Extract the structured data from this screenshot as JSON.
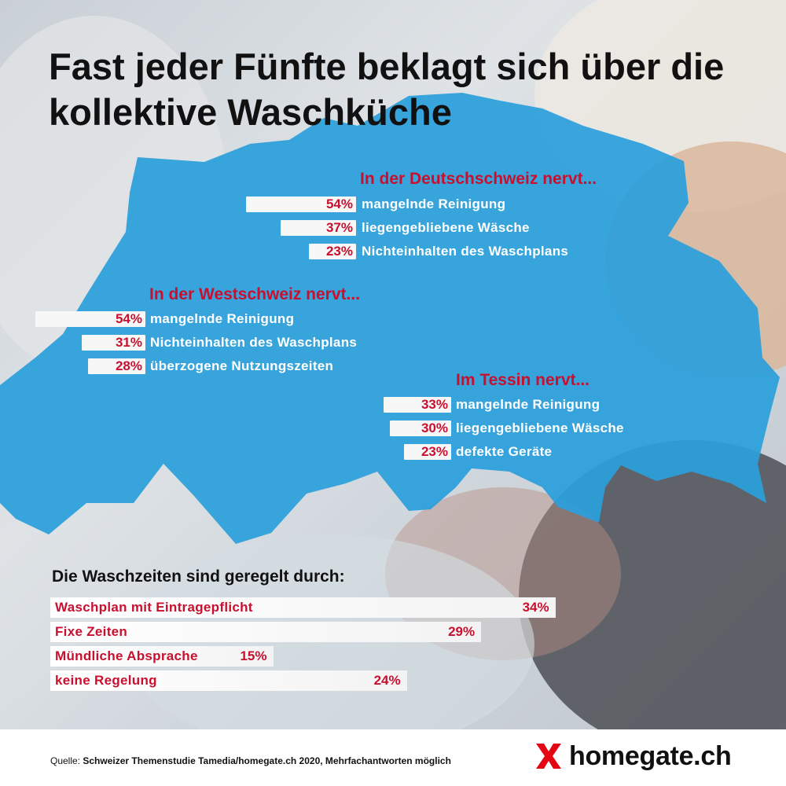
{
  "title": "Fast jeder Fünfte beklagt sich über die kollektive Waschküche",
  "colors": {
    "accent": "#c8102e",
    "map": "#2b9fdc",
    "bar": "#f7f7f7"
  },
  "regions": [
    {
      "heading": "In der Deutschschweiz nervt...",
      "items": [
        {
          "label": "mangelnde Reinigung",
          "value": 54,
          "display": "54%"
        },
        {
          "label": "liegengebliebene Wäsche",
          "value": 37,
          "display": "37%"
        },
        {
          "label": "Nichteinhalten des Waschplans",
          "value": 23,
          "display": "23%"
        }
      ]
    },
    {
      "heading": "In der Westschweiz nervt...",
      "items": [
        {
          "label": "mangelnde Reinigung",
          "value": 54,
          "display": "54%"
        },
        {
          "label": "Nichteinhalten des Waschplans",
          "value": 31,
          "display": "31%"
        },
        {
          "label": "überzogene Nutzungszeiten",
          "value": 28,
          "display": "28%"
        }
      ]
    },
    {
      "heading": "Im Tessin nervt...",
      "items": [
        {
          "label": "mangelnde Reinigung",
          "value": 33,
          "display": "33%"
        },
        {
          "label": "liegengebliebene Wäsche",
          "value": 30,
          "display": "30%"
        },
        {
          "label": "defekte Geräte",
          "value": 23,
          "display": "23%"
        }
      ]
    }
  ],
  "waschzeiten": {
    "heading": "Die Waschzeiten sind geregelt durch:",
    "items": [
      {
        "label": "Waschplan mit Eintragepflicht",
        "value": 34,
        "display": "34%"
      },
      {
        "label": "Fixe Zeiten",
        "value": 29,
        "display": "29%"
      },
      {
        "label": "Mündliche Absprache",
        "value": 15,
        "display": "15%"
      },
      {
        "label": "keine Regelung",
        "value": 24,
        "display": "24%"
      }
    ]
  },
  "footer": {
    "source_prefix": "Quelle:",
    "source_text": "Schweizer Themenstudie Tamedia/homegate.ch 2020, Mehrfachantworten möglich",
    "logo_text": "homegate.ch"
  },
  "chart_data": [
    {
      "type": "bar",
      "title": "In der Deutschschweiz nervt...",
      "categories": [
        "mangelnde Reinigung",
        "liegengebliebene Wäsche",
        "Nichteinhalten des Waschplans"
      ],
      "values": [
        54,
        37,
        23
      ]
    },
    {
      "type": "bar",
      "title": "In der Westschweiz nervt...",
      "categories": [
        "mangelnde Reinigung",
        "Nichteinhalten des Waschplans",
        "überzogene Nutzungszeiten"
      ],
      "values": [
        54,
        31,
        28
      ]
    },
    {
      "type": "bar",
      "title": "Im Tessin nervt...",
      "categories": [
        "mangelnde Reinigung",
        "liegengebliebene Wäsche",
        "defekte Geräte"
      ],
      "values": [
        33,
        30,
        23
      ]
    },
    {
      "type": "bar",
      "title": "Die Waschzeiten sind geregelt durch:",
      "categories": [
        "Waschplan mit Eintragepflicht",
        "Fixe Zeiten",
        "Mündliche Absprache",
        "keine Regelung"
      ],
      "values": [
        34,
        29,
        15,
        24
      ]
    }
  ]
}
